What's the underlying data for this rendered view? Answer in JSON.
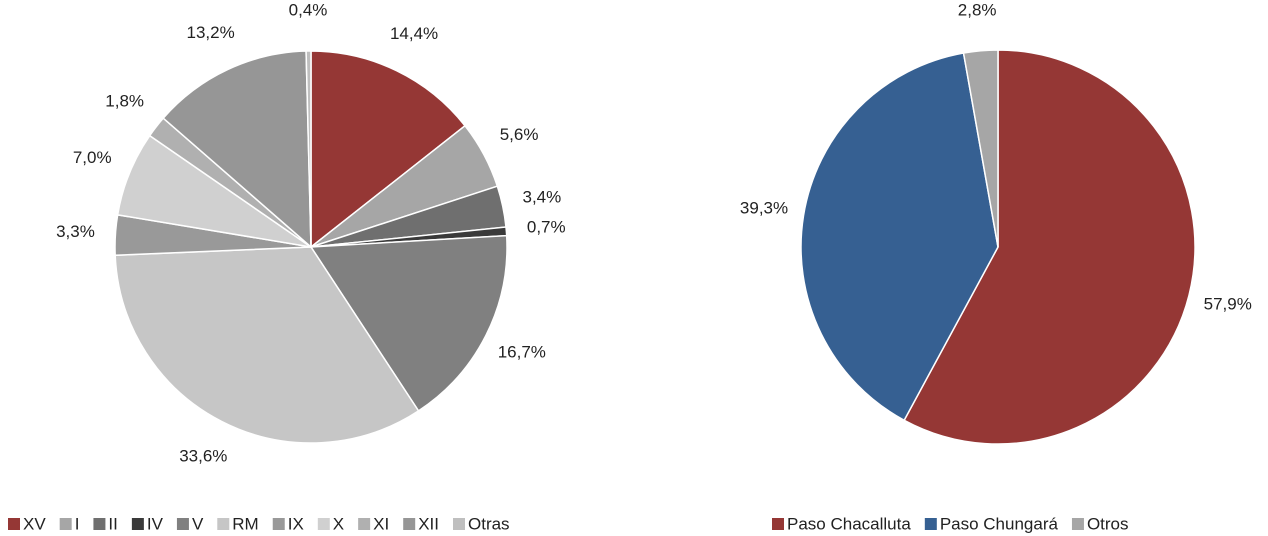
{
  "chart_data": [
    {
      "type": "pie",
      "categories": [
        "XV",
        "I",
        "II",
        "IV",
        "V",
        "RM",
        "IX",
        "X",
        "XI",
        "XII",
        "Otras"
      ],
      "values": [
        14.4,
        5.6,
        3.4,
        0.7,
        16.7,
        33.6,
        3.3,
        7.0,
        1.8,
        13.2,
        0.4
      ],
      "value_labels": [
        "14,4%",
        "5,6%",
        "3,4%",
        "0,7%",
        "16,7%",
        "33,6%",
        "3,3%",
        "7,0%",
        "1,8%",
        "13,2%",
        "0,4%"
      ],
      "colors": [
        "#953735",
        "#a6a6a6",
        "#6f6f6f",
        "#3a3a3a",
        "#808080",
        "#c6c6c6",
        "#999999",
        "#d0d0d0",
        "#b0b0b0",
        "#969696",
        "#bfbfbf"
      ],
      "legend": "bottom"
    },
    {
      "type": "pie",
      "categories": [
        "Paso Chacalluta",
        "Paso Chungará",
        "Otros"
      ],
      "values": [
        57.9,
        39.3,
        2.8
      ],
      "value_labels": [
        "57,9%",
        "39,3%",
        "2,8%"
      ],
      "colors": [
        "#953735",
        "#366092",
        "#a6a6a6"
      ],
      "legend": "bottom"
    }
  ]
}
